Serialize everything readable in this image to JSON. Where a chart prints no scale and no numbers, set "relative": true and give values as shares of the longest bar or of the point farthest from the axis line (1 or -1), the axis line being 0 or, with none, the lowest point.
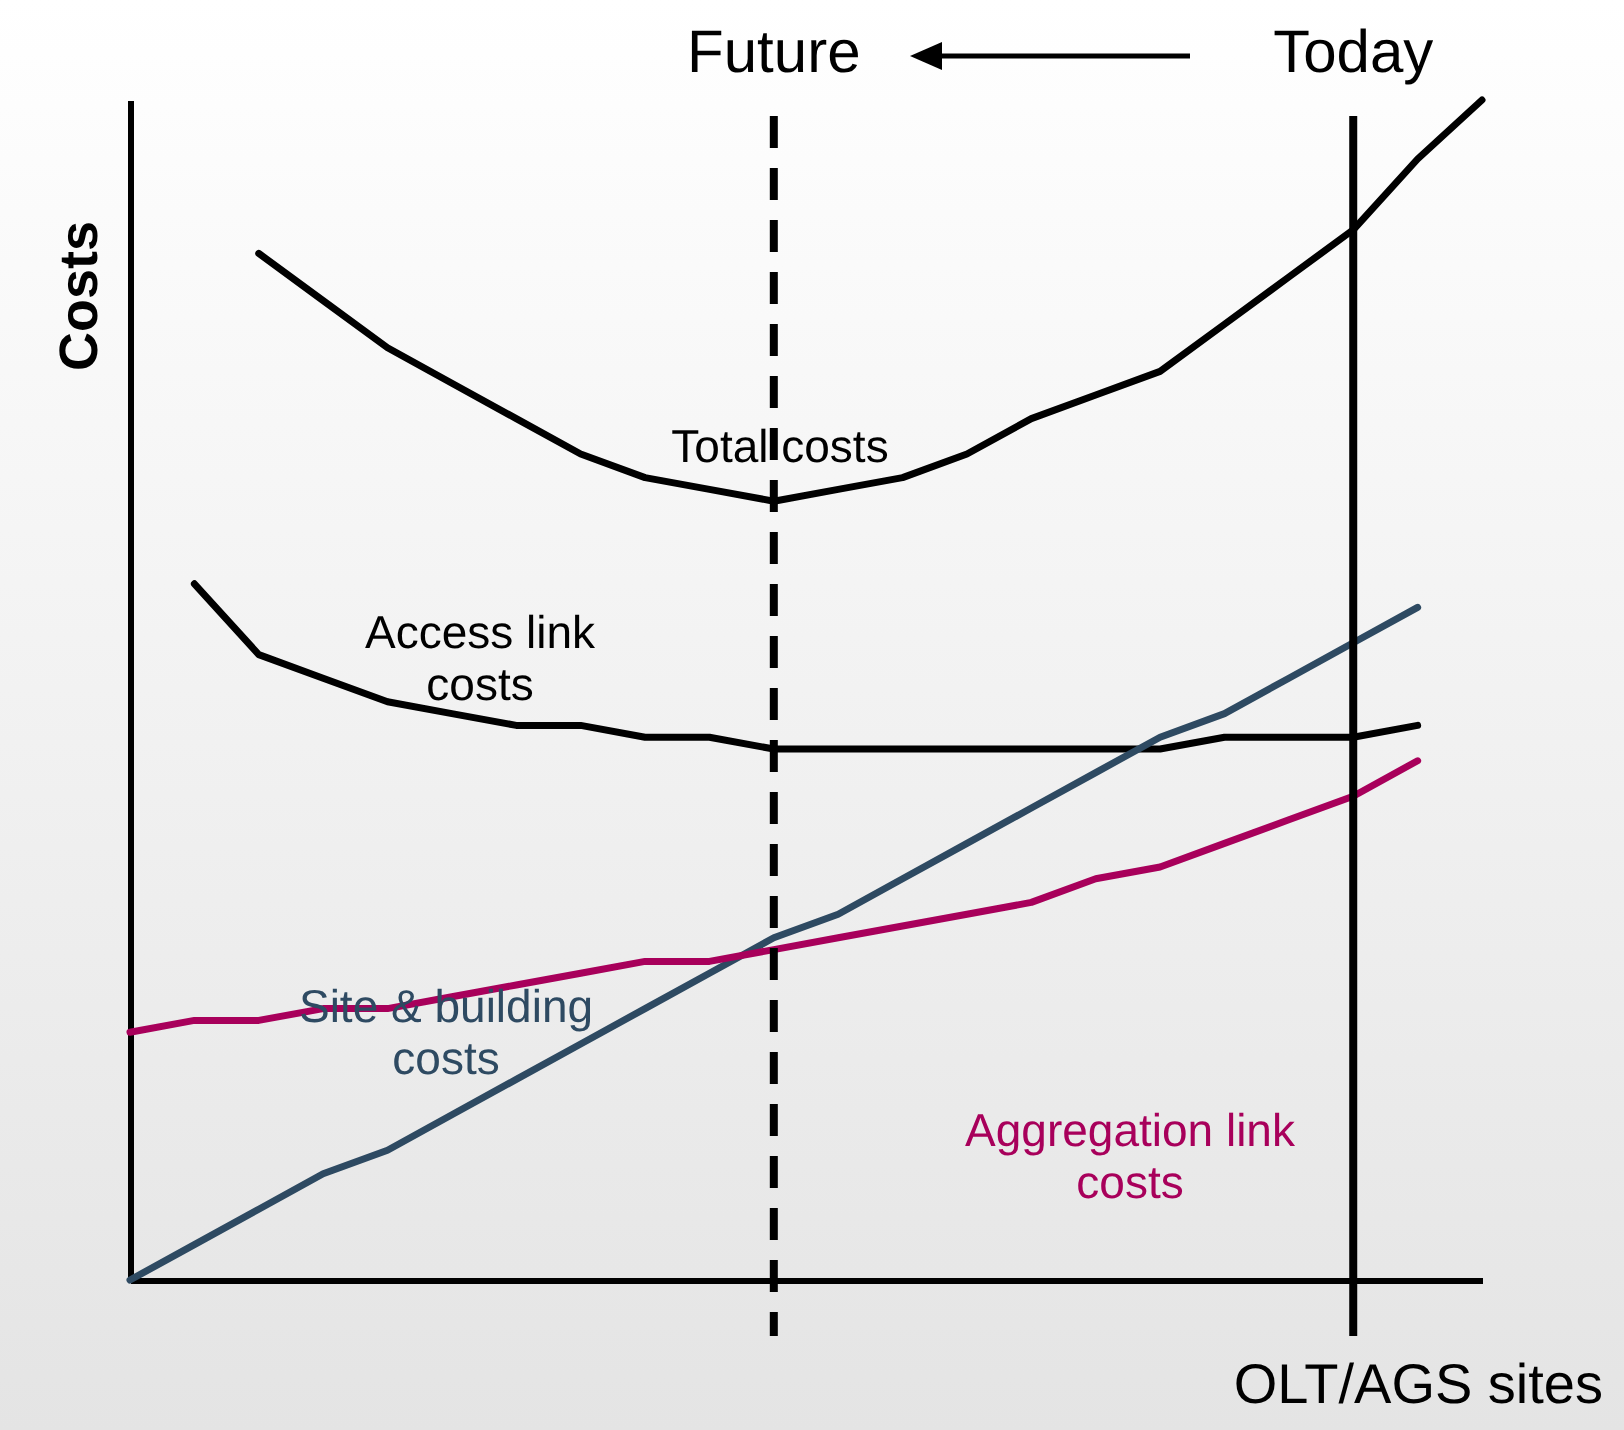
{
  "chart_data": {
    "type": "line",
    "relative": true,
    "xlabel": "OLT/AGS sites",
    "ylabel": "Costs",
    "categories": [
      null,
      null,
      null,
      null,
      null,
      null,
      null,
      null,
      null,
      null,
      null,
      null,
      null,
      null,
      null,
      null,
      null,
      null,
      null,
      null,
      null,
      null
    ],
    "series": [
      {
        "name": "Total costs",
        "color": "#000000",
        "values": [
          null,
          null,
          0.87,
          0.83,
          0.79,
          0.76,
          0.73,
          0.7,
          0.68,
          0.67,
          0.66,
          0.67,
          0.68,
          0.7,
          0.73,
          0.75,
          0.77,
          0.81,
          0.85,
          0.89,
          0.95,
          1
        ]
      },
      {
        "name": "Access link costs",
        "color": "#000000",
        "values": [
          null,
          0.59,
          0.53,
          0.51,
          0.49,
          0.48,
          0.47,
          0.47,
          0.46,
          0.46,
          0.45,
          0.45,
          0.45,
          0.45,
          0.45,
          0.45,
          0.45,
          0.46,
          0.46,
          0.46,
          0.47,
          null
        ]
      },
      {
        "name": "Site & building costs",
        "color": "#2e4a62",
        "values": [
          0,
          0.03,
          0.06,
          0.09,
          0.11,
          0.14,
          0.17,
          0.2,
          0.23,
          0.26,
          0.29,
          0.31,
          0.34,
          0.37,
          0.4,
          0.43,
          0.46,
          0.48,
          0.51,
          0.54,
          0.57,
          null
        ]
      },
      {
        "name": "Aggregation link costs",
        "color": "#a8005b",
        "values": [
          0.21,
          0.22,
          0.22,
          0.23,
          0.23,
          0.24,
          0.25,
          0.26,
          0.27,
          0.27,
          0.28,
          0.29,
          0.3,
          0.31,
          0.32,
          0.34,
          0.35,
          0.37,
          0.39,
          0.41,
          0.44,
          null
        ]
      }
    ],
    "annotations": [
      "Future",
      "Today"
    ]
  }
}
